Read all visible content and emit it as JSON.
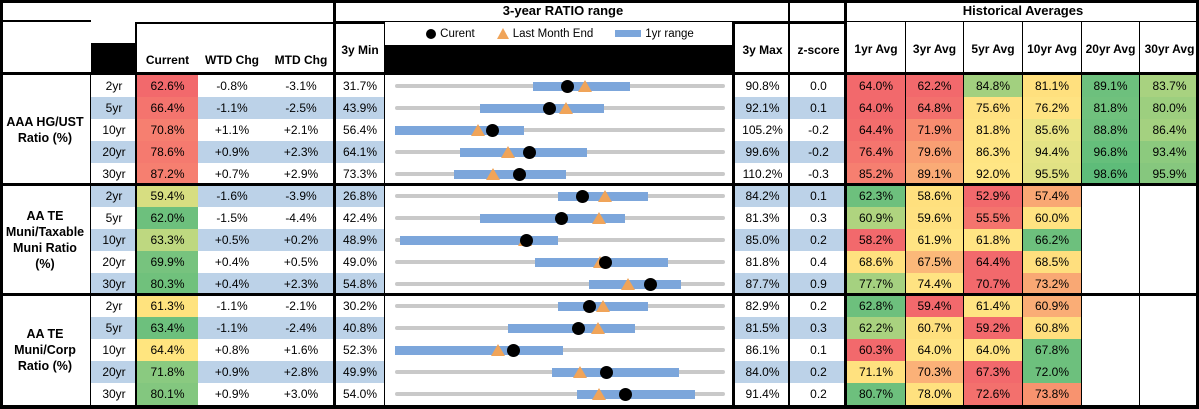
{
  "header": {
    "ratio_title": "3-year RATIO range",
    "hist_title": "Historical Averages",
    "cols": {
      "current": "Current",
      "wtd": "WTD Chg",
      "mtd": "MTD Chg",
      "min": "3y Min",
      "max": "3y Max",
      "z": "z-score"
    },
    "avg_cols": [
      "1yr Avg",
      "3yr Avg",
      "5yr Avg",
      "10yr Avg",
      "20yr Avg",
      "30yr Avg"
    ],
    "legend": {
      "current": "Curent",
      "lme": "Last Month End",
      "range": "1yr range"
    }
  },
  "colors": {
    "stripe_blue": "#BCD2E8",
    "bar_blue": "#7CA6DB",
    "track_gray": "#C9C9C9",
    "triangle_orange": "#F0A459",
    "dot_black": "#000000",
    "header_black": "#000000"
  },
  "chart_data": {
    "type": "table",
    "title": "3-year RATIO range with Historical Averages",
    "legend_entries": [
      "Curent",
      "Last Month End",
      "1yr range"
    ],
    "groups": [
      {
        "label": "AAA HG/UST\nRatio (%)",
        "rows": [
          {
            "tenor": "2yr",
            "current": 62.6,
            "current_color": "#F2696C",
            "wtd_chg": -0.8,
            "mtd_chg": -3.1,
            "min_3y": 31.7,
            "max_3y": 90.8,
            "z_score": 0.0,
            "last_month_end": 65.7,
            "range_1yr": [
              56.4,
              73.8
            ],
            "avgs": [
              64.0,
              62.2,
              84.8,
              81.1,
              89.1,
              83.7
            ],
            "avg_colors": [
              "#F2696C",
              "#F2696C",
              "#A2D07F",
              "#FFE07E",
              "#6DC07D",
              "#A8D280"
            ]
          },
          {
            "tenor": "5yr",
            "current": 66.4,
            "current_color": "#F4746E",
            "wtd_chg": -1.1,
            "mtd_chg": -2.5,
            "min_3y": 43.9,
            "max_3y": 92.1,
            "z_score": 0.1,
            "last_month_end": 68.9,
            "range_1yr": [
              56.3,
              74.4
            ],
            "avgs": [
              64.0,
              64.8,
              75.6,
              76.2,
              81.8,
              80.0
            ],
            "avg_colors": [
              "#F2696C",
              "#F3706D",
              "#FFE181",
              "#FFE382",
              "#70C17D",
              "#9DCF7F"
            ]
          },
          {
            "tenor": "10yr",
            "current": 70.8,
            "current_color": "#F67F70",
            "wtd_chg": 1.1,
            "mtd_chg": 2.1,
            "min_3y": 56.4,
            "max_3y": 105.2,
            "z_score": -0.2,
            "last_month_end": 68.7,
            "range_1yr": [
              56.4,
              75.5
            ],
            "avgs": [
              64.4,
              71.9,
              81.8,
              85.6,
              88.8,
              86.4
            ],
            "avg_colors": [
              "#F36D6C",
              "#F88D70",
              "#FFE483",
              "#EAE586",
              "#6EC07D",
              "#A4D180"
            ]
          },
          {
            "tenor": "20yr",
            "current": 78.6,
            "current_color": "#F57A6F",
            "wtd_chg": 0.9,
            "mtd_chg": 2.3,
            "min_3y": 64.1,
            "max_3y": 99.6,
            "z_score": -0.2,
            "last_month_end": 76.3,
            "range_1yr": [
              71.1,
              84.8
            ],
            "avgs": [
              76.4,
              79.6,
              86.3,
              94.4,
              96.8,
              93.4
            ],
            "avg_colors": [
              "#F4756E",
              "#F99F73",
              "#FFE583",
              "#E4E385",
              "#65BF7B",
              "#8CCA7E"
            ]
          },
          {
            "tenor": "30yr",
            "current": 87.2,
            "current_color": "#F67F70",
            "wtd_chg": 0.7,
            "mtd_chg": 2.9,
            "min_3y": 73.3,
            "max_3y": 110.2,
            "z_score": -0.3,
            "last_month_end": 84.3,
            "range_1yr": [
              79.9,
              92.4
            ],
            "avgs": [
              85.2,
              89.1,
              92.0,
              95.5,
              98.6,
              95.9
            ],
            "avg_colors": [
              "#F67F70",
              "#FAAB76",
              "#FFE685",
              "#E1E284",
              "#5EBC79",
              "#86C77E"
            ]
          }
        ]
      },
      {
        "label": "AA TE\nMuni/Taxable\nMuni Ratio\n(%)",
        "rows": [
          {
            "tenor": "2yr",
            "current": 59.4,
            "current_color": "#D7DE81",
            "wtd_chg": -1.6,
            "mtd_chg": -3.9,
            "min_3y": 26.8,
            "max_3y": 84.2,
            "z_score": 0.1,
            "last_month_end": 63.3,
            "range_1yr": [
              55.2,
              70.8
            ],
            "avgs": [
              62.3,
              58.6,
              52.9,
              57.4
            ],
            "avg_colors": [
              "#6DC07D",
              "#FFE07E",
              "#F2696C",
              "#F9A874"
            ]
          },
          {
            "tenor": "5yr",
            "current": 62.0,
            "current_color": "#6DC07D",
            "wtd_chg": -1.5,
            "mtd_chg": -4.4,
            "min_3y": 42.4,
            "max_3y": 81.3,
            "z_score": 0.3,
            "last_month_end": 66.4,
            "range_1yr": [
              52.4,
              69.5
            ],
            "avgs": [
              60.9,
              59.6,
              55.5,
              60.0
            ],
            "avg_colors": [
              "#AFD47F",
              "#FFE180",
              "#F4746D",
              "#FFE381"
            ]
          },
          {
            "tenor": "10yr",
            "current": 63.3,
            "current_color": "#BED880",
            "wtd_chg": 0.5,
            "mtd_chg": 0.2,
            "min_3y": 48.9,
            "max_3y": 85.0,
            "z_score": 0.2,
            "last_month_end": 63.1,
            "range_1yr": [
              49.4,
              66.7
            ],
            "avgs": [
              58.2,
              61.9,
              61.8,
              66.2
            ],
            "avg_colors": [
              "#F2696C",
              "#FFE483",
              "#FFE483",
              "#6DC07D"
            ]
          },
          {
            "tenor": "20yr",
            "current": 69.9,
            "current_color": "#77C37E",
            "wtd_chg": 0.4,
            "mtd_chg": 0.5,
            "min_3y": 49.0,
            "max_3y": 81.8,
            "z_score": 0.4,
            "last_month_end": 69.4,
            "range_1yr": [
              62.9,
              76.1
            ],
            "avgs": [
              68.6,
              67.5,
              64.4,
              68.5
            ],
            "avg_colors": [
              "#FFE17F",
              "#FBB879",
              "#F2696C",
              "#FFDF7E"
            ]
          },
          {
            "tenor": "30yr",
            "current": 80.3,
            "current_color": "#70C17C",
            "wtd_chg": 0.4,
            "mtd_chg": 2.3,
            "min_3y": 54.8,
            "max_3y": 87.7,
            "z_score": 0.9,
            "last_month_end": 78.0,
            "range_1yr": [
              74.1,
              83.3
            ],
            "avgs": [
              77.7,
              74.4,
              70.7,
              73.2
            ],
            "avg_colors": [
              "#A5D180",
              "#FFE382",
              "#F2696C",
              "#F9A874"
            ]
          }
        ]
      },
      {
        "label": "AA TE\nMuni/Corp\nRatio (%)",
        "rows": [
          {
            "tenor": "2yr",
            "current": 61.3,
            "current_color": "#FFE37E",
            "wtd_chg": -1.1,
            "mtd_chg": -2.1,
            "min_3y": 30.2,
            "max_3y": 82.9,
            "z_score": 0.2,
            "last_month_end": 63.4,
            "range_1yr": [
              56.2,
              70.6
            ],
            "avgs": [
              62.8,
              59.4,
              61.4,
              60.9
            ],
            "avg_colors": [
              "#6DC07D",
              "#F2696C",
              "#FFE382",
              "#FAAD76"
            ]
          },
          {
            "tenor": "5yr",
            "current": 63.4,
            "current_color": "#6DC07D",
            "wtd_chg": -1.1,
            "mtd_chg": -2.4,
            "min_3y": 40.8,
            "max_3y": 81.5,
            "z_score": 0.3,
            "last_month_end": 65.8,
            "range_1yr": [
              54.7,
              70.4
            ],
            "avgs": [
              62.2,
              60.7,
              59.2,
              60.8
            ],
            "avg_colors": [
              "#A9D27F",
              "#FFE07E",
              "#F2696C",
              "#FFDF7E"
            ]
          },
          {
            "tenor": "10yr",
            "current": 64.4,
            "current_color": "#FFE57F",
            "wtd_chg": 0.8,
            "mtd_chg": 1.6,
            "min_3y": 52.3,
            "max_3y": 86.1,
            "z_score": 0.1,
            "last_month_end": 62.8,
            "range_1yr": [
              52.3,
              69.5
            ],
            "avgs": [
              60.3,
              64.0,
              64.0,
              67.8
            ],
            "avg_colors": [
              "#F2696C",
              "#FFE483",
              "#FFE483",
              "#6DC07D"
            ]
          },
          {
            "tenor": "20yr",
            "current": 71.8,
            "current_color": "#8ACA80",
            "wtd_chg": 0.9,
            "mtd_chg": 2.8,
            "min_3y": 49.9,
            "max_3y": 84.0,
            "z_score": 0.2,
            "last_month_end": 69.0,
            "range_1yr": [
              66.1,
              79.2
            ],
            "avgs": [
              71.1,
              70.3,
              67.3,
              72.0
            ],
            "avg_colors": [
              "#FFE17F",
              "#FBB178",
              "#F2696C",
              "#6DC07D"
            ]
          },
          {
            "tenor": "30yr",
            "current": 80.1,
            "current_color": "#83C77F",
            "wtd_chg": 0.9,
            "mtd_chg": 3.0,
            "min_3y": 54.0,
            "max_3y": 91.4,
            "z_score": 0.2,
            "last_month_end": 77.1,
            "range_1yr": [
              74.6,
              88.0
            ],
            "avgs": [
              80.7,
              78.0,
              72.6,
              73.8
            ],
            "avg_colors": [
              "#6DC07D",
              "#FFE17F",
              "#F3706D",
              "#F8936F"
            ]
          }
        ]
      }
    ]
  }
}
